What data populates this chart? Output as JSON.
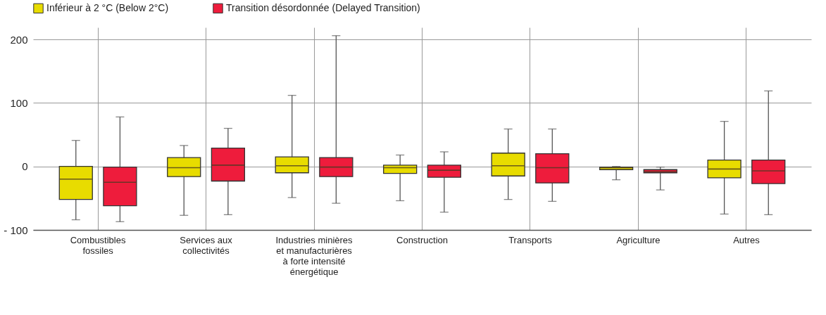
{
  "chart_data": {
    "type": "box",
    "categories": [
      "Combustibles fossiles",
      "Services aux collectivités",
      "Industries minières et manufacturières à forte intensité énergétique",
      "Construction",
      "Transports",
      "Agriculture",
      "Autres"
    ],
    "series": [
      {
        "name": "Inférieur à 2 °C (Below 2°C)",
        "color": "#e8dc00",
        "boxes": [
          {
            "low": -84,
            "q1": -52,
            "median": -20,
            "q3": 0,
            "high": 41
          },
          {
            "low": -77,
            "q1": -16,
            "median": -2,
            "q3": 14,
            "high": 33
          },
          {
            "low": -49,
            "q1": -10,
            "median": 1,
            "q3": 15,
            "high": 112
          },
          {
            "low": -54,
            "q1": -11,
            "median": -2,
            "q3": 2,
            "high": 18
          },
          {
            "low": -52,
            "q1": -15,
            "median": 1,
            "q3": 21,
            "high": 59
          },
          {
            "low": -21,
            "q1": -5,
            "median": -2,
            "q3": -1,
            "high": 0
          },
          {
            "low": -75,
            "q1": -18,
            "median": -4,
            "q3": 10,
            "high": 71
          }
        ]
      },
      {
        "name": "Transition désordonnée (Delayed Transition)",
        "color": "#ee1c3c",
        "boxes": [
          {
            "low": -87,
            "q1": -62,
            "median": -25,
            "q3": -1,
            "high": 78
          },
          {
            "low": -76,
            "q1": -23,
            "median": 2,
            "q3": 29,
            "high": 60
          },
          {
            "low": -58,
            "q1": -16,
            "median": -1,
            "q3": 14,
            "high": 206
          },
          {
            "low": -72,
            "q1": -17,
            "median": -6,
            "q3": 2,
            "high": 23
          },
          {
            "low": -55,
            "q1": -26,
            "median": -2,
            "q3": 20,
            "high": 59
          },
          {
            "low": -37,
            "q1": -10,
            "median": -8,
            "q3": -5,
            "high": -1
          },
          {
            "low": -76,
            "q1": -27,
            "median": -7,
            "q3": 10,
            "high": 119
          }
        ]
      }
    ],
    "ylim": [
      -100,
      219
    ],
    "yticks": [
      {
        "value": -100,
        "label": "- 100"
      },
      0,
      100,
      200
    ],
    "grid": true,
    "legend": "top left"
  }
}
